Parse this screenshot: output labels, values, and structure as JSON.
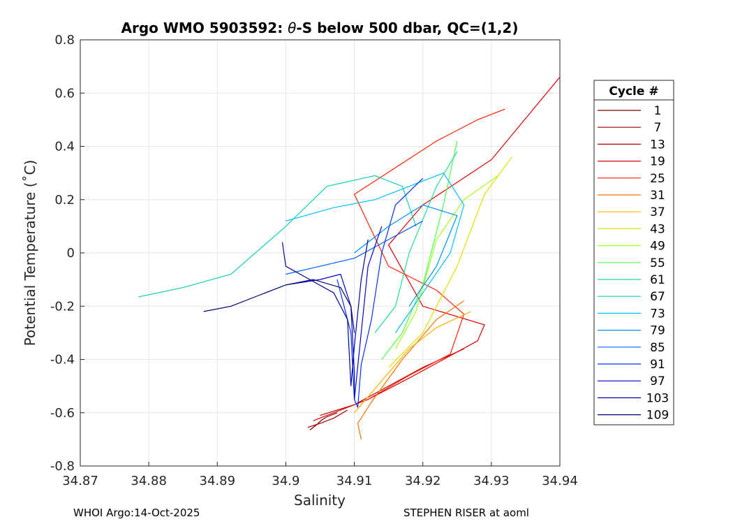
{
  "chart_data": {
    "type": "line",
    "title_prefix": "Argo WMO 5903592: ",
    "title_theta": "θ",
    "title_suffix": "-S below 500 dbar,  QC=(1,2)",
    "xlabel": "Salinity",
    "ylabel": "Potential Temperature (˚C)",
    "xlim": [
      34.87,
      34.94
    ],
    "ylim": [
      -0.8,
      0.8
    ],
    "x_ticks": [
      34.87,
      34.88,
      34.89,
      34.9,
      34.91,
      34.92,
      34.93,
      34.94
    ],
    "x_tick_labels": [
      "34.87",
      "34.88",
      "34.89",
      "34.9",
      "34.91",
      "34.92",
      "34.93",
      "34.94"
    ],
    "y_ticks": [
      -0.8,
      -0.6,
      -0.4,
      -0.2,
      0,
      0.2,
      0.4,
      0.6,
      0.8
    ],
    "y_tick_labels": [
      "-0.8",
      "-0.6",
      "-0.4",
      "-0.2",
      "0",
      "0.2",
      "0.4",
      "0.6",
      "0.8"
    ],
    "grid": true,
    "legend_title": "Cycle #",
    "legend_position": "outside-right",
    "series": [
      {
        "name": "1",
        "color": "#800000",
        "points": [
          [
            34.9035,
            -0.665
          ],
          [
            34.9045,
            -0.645
          ],
          [
            34.9052,
            -0.628
          ],
          [
            34.906,
            -0.615
          ],
          [
            34.9075,
            -0.6
          ]
        ]
      },
      {
        "name": "7",
        "color": "#a00000",
        "points": [
          [
            34.9032,
            -0.655
          ],
          [
            34.905,
            -0.64
          ],
          [
            34.907,
            -0.62
          ],
          [
            34.909,
            -0.59
          ]
        ]
      },
      {
        "name": "13",
        "color": "#c00000",
        "points": [
          [
            34.905,
            -0.61
          ],
          [
            34.91,
            -0.57
          ],
          [
            34.915,
            -0.5
          ],
          [
            34.92,
            -0.43
          ],
          [
            34.926,
            -0.36
          ]
        ]
      },
      {
        "name": "19",
        "color": "#e00000",
        "points": [
          [
            34.904,
            -0.63
          ],
          [
            34.912,
            -0.55
          ],
          [
            34.918,
            -0.47
          ],
          [
            34.923,
            -0.4
          ],
          [
            34.928,
            -0.33
          ],
          [
            34.929,
            -0.27
          ],
          [
            34.92,
            -0.2
          ],
          [
            34.915,
            0.03
          ],
          [
            34.92,
            0.18
          ],
          [
            34.93,
            0.35
          ],
          [
            34.94,
            0.66
          ]
        ]
      },
      {
        "name": "25",
        "color": "#ff2000",
        "points": [
          [
            34.912,
            -0.55
          ],
          [
            34.918,
            -0.46
          ],
          [
            34.924,
            -0.38
          ],
          [
            34.926,
            -0.23
          ],
          [
            34.922,
            -0.14
          ],
          [
            34.915,
            -0.05
          ],
          [
            34.91,
            0.22
          ],
          [
            34.922,
            0.42
          ],
          [
            34.928,
            0.5
          ],
          [
            34.932,
            0.54
          ]
        ]
      },
      {
        "name": "31",
        "color": "#ff7000",
        "points": [
          [
            34.911,
            -0.7
          ],
          [
            34.9105,
            -0.64
          ],
          [
            34.9125,
            -0.56
          ],
          [
            34.917,
            -0.4
          ],
          [
            34.922,
            -0.25
          ],
          [
            34.926,
            -0.18
          ]
        ]
      },
      {
        "name": "37",
        "color": "#ffb000",
        "points": [
          [
            34.91,
            -0.6
          ],
          [
            34.914,
            -0.48
          ],
          [
            34.918,
            -0.36
          ],
          [
            34.922,
            -0.28
          ],
          [
            34.927,
            -0.22
          ]
        ]
      },
      {
        "name": "43",
        "color": "#e0e000",
        "points": [
          [
            34.915,
            -0.43
          ],
          [
            34.92,
            -0.3
          ],
          [
            34.925,
            -0.05
          ],
          [
            34.929,
            0.22
          ],
          [
            34.933,
            0.36
          ]
        ]
      },
      {
        "name": "49",
        "color": "#a0ff20",
        "points": [
          [
            34.916,
            -0.36
          ],
          [
            34.919,
            -0.22
          ],
          [
            34.922,
            0.05
          ],
          [
            34.926,
            0.2
          ],
          [
            34.931,
            0.29
          ]
        ]
      },
      {
        "name": "55",
        "color": "#50ff50",
        "points": [
          [
            34.914,
            -0.4
          ],
          [
            34.917,
            -0.3
          ],
          [
            34.92,
            -0.12
          ],
          [
            34.923,
            0.18
          ],
          [
            34.925,
            0.42
          ]
        ]
      },
      {
        "name": "61",
        "color": "#20e090",
        "points": [
          [
            34.913,
            -0.3
          ],
          [
            34.916,
            -0.2
          ],
          [
            34.918,
            0.0
          ],
          [
            34.922,
            0.25
          ],
          [
            34.925,
            0.38
          ]
        ]
      },
      {
        "name": "67",
        "color": "#10d0b0",
        "points": [
          [
            34.8785,
            -0.165
          ],
          [
            34.885,
            -0.13
          ],
          [
            34.892,
            -0.08
          ],
          [
            34.9,
            0.1
          ],
          [
            34.906,
            0.25
          ],
          [
            34.913,
            0.29
          ],
          [
            34.917,
            0.25
          ],
          [
            34.919,
            0.1
          ]
        ]
      },
      {
        "name": "73",
        "color": "#00c0ff",
        "points": [
          [
            34.9,
            0.12
          ],
          [
            34.907,
            0.17
          ],
          [
            34.913,
            0.2
          ],
          [
            34.918,
            0.25
          ],
          [
            34.923,
            0.3
          ],
          [
            34.926,
            0.18
          ],
          [
            34.924,
            0.0
          ],
          [
            34.92,
            -0.15
          ],
          [
            34.916,
            -0.3
          ]
        ]
      },
      {
        "name": "79",
        "color": "#0090ff",
        "points": [
          [
            34.91,
            0.0
          ],
          [
            34.915,
            0.1
          ],
          [
            34.92,
            0.18
          ],
          [
            34.925,
            0.14
          ],
          [
            34.922,
            -0.05
          ],
          [
            34.918,
            -0.2
          ]
        ]
      },
      {
        "name": "85",
        "color": "#0060ff",
        "points": [
          [
            34.9,
            -0.08
          ],
          [
            34.905,
            -0.05
          ],
          [
            34.91,
            -0.02
          ],
          [
            34.915,
            0.05
          ],
          [
            34.92,
            0.12
          ]
        ]
      },
      {
        "name": "91",
        "color": "#0030ff",
        "points": [
          [
            34.9075,
            -0.1
          ],
          [
            34.9095,
            -0.3
          ],
          [
            34.91,
            -0.55
          ],
          [
            34.9105,
            -0.58
          ],
          [
            34.911,
            -0.42
          ],
          [
            34.9125,
            -0.25
          ],
          [
            34.914,
            0.0
          ],
          [
            34.916,
            0.18
          ],
          [
            34.92,
            0.28
          ]
        ]
      },
      {
        "name": "97",
        "color": "#0000d0",
        "points": [
          [
            34.9,
            -0.12
          ],
          [
            34.905,
            -0.1
          ],
          [
            34.908,
            -0.08
          ],
          [
            34.9095,
            -0.2
          ],
          [
            34.91,
            -0.45
          ],
          [
            34.91,
            -0.55
          ],
          [
            34.911,
            -0.3
          ],
          [
            34.912,
            -0.05
          ],
          [
            34.914,
            0.1
          ]
        ]
      },
      {
        "name": "103",
        "color": "#0000a0",
        "points": [
          [
            34.8995,
            0.04
          ],
          [
            34.9,
            -0.05
          ],
          [
            34.9035,
            -0.1
          ],
          [
            34.907,
            -0.15
          ],
          [
            34.909,
            -0.25
          ],
          [
            34.9095,
            -0.5
          ],
          [
            34.91,
            -0.35
          ],
          [
            34.911,
            -0.1
          ],
          [
            34.912,
            0.05
          ]
        ]
      },
      {
        "name": "109",
        "color": "#000070",
        "points": [
          [
            34.888,
            -0.22
          ],
          [
            34.892,
            -0.2
          ],
          [
            34.896,
            -0.16
          ],
          [
            34.9,
            -0.12
          ],
          [
            34.904,
            -0.1
          ],
          [
            34.908,
            -0.13
          ],
          [
            34.9095,
            -0.2
          ],
          [
            34.91,
            -0.3
          ]
        ]
      }
    ]
  },
  "footer": {
    "left": "WHOI Argo:14-Oct-2025",
    "right": "STEPHEN RISER at aoml"
  }
}
